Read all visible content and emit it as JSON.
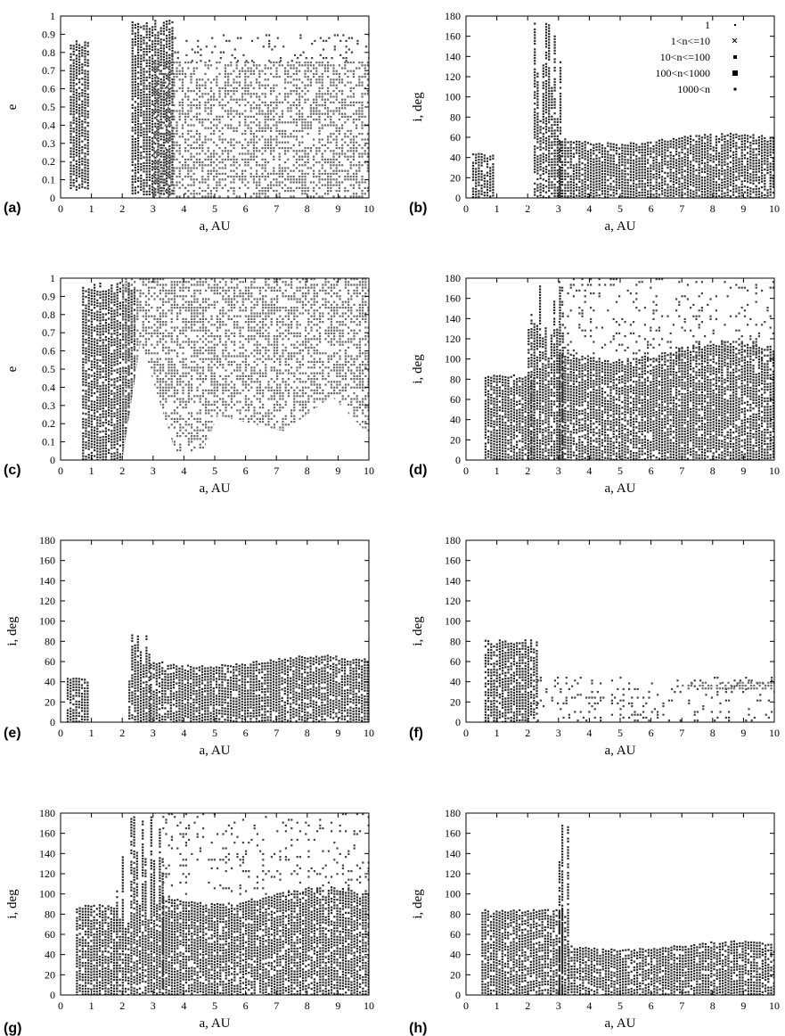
{
  "chart_data": [
    {
      "panel": "(a)",
      "type": "scatter",
      "xlabel": "a, AU",
      "ylabel": "e",
      "xlim": [
        0,
        10
      ],
      "ylim": [
        0,
        1
      ],
      "xticks": [
        "0",
        "1",
        "2",
        "3",
        "4",
        "5",
        "6",
        "7",
        "8",
        "9",
        "10"
      ],
      "yticks": [
        "0",
        "0.1",
        "0.2",
        "0.3",
        "0.4",
        "0.5",
        "0.6",
        "0.7",
        "0.8",
        "0.9",
        "1"
      ],
      "regions": [
        {
          "x": [
            0.3,
            0.9
          ],
          "y": [
            0.05,
            0.87
          ],
          "density": "high",
          "shape": "band"
        },
        {
          "x": [
            2.3,
            3.6
          ],
          "y": [
            0.02,
            0.98
          ],
          "density": "high",
          "shape": "band"
        },
        {
          "x": [
            3.0,
            10.0
          ],
          "y": [
            0.0,
            0.75
          ],
          "density": "medium",
          "shape": "rect"
        },
        {
          "x": [
            3.5,
            10.0
          ],
          "y": [
            0.75,
            0.9
          ],
          "density": "low",
          "shape": "rect"
        }
      ]
    },
    {
      "panel": "(b)",
      "type": "scatter",
      "xlabel": "a, AU",
      "ylabel": "i, deg",
      "xlim": [
        0,
        10
      ],
      "ylim": [
        0,
        180
      ],
      "xticks": [
        "0",
        "1",
        "2",
        "3",
        "4",
        "5",
        "6",
        "7",
        "8",
        "9",
        "10"
      ],
      "yticks": [
        "0",
        "20",
        "40",
        "60",
        "80",
        "100",
        "120",
        "140",
        "160",
        "180"
      ],
      "legend": {
        "position": "top-right",
        "entries": [
          {
            "label": "1",
            "marker": "dot"
          },
          {
            "label": "1<n<=10",
            "marker": "x"
          },
          {
            "label": "10<n<=100",
            "marker": "small-square"
          },
          {
            "label": "100<n<1000",
            "marker": "square"
          },
          {
            "label": "1000<n",
            "marker": "tiny-square"
          }
        ]
      },
      "regions": [
        {
          "x": [
            0.2,
            0.9
          ],
          "y": [
            0,
            45
          ],
          "density": "high",
          "shape": "band"
        },
        {
          "x": [
            2.2,
            3.1
          ],
          "y": [
            0,
            175
          ],
          "density": "high",
          "shape": "spikes"
        },
        {
          "x": [
            3.0,
            10.0
          ],
          "y": [
            0,
            60
          ],
          "density": "high",
          "shape": "plateau"
        }
      ]
    },
    {
      "panel": "(c)",
      "type": "scatter",
      "xlabel": "a, AU",
      "ylabel": "e",
      "xlim": [
        0,
        10
      ],
      "ylim": [
        0,
        1
      ],
      "xticks": [
        "0",
        "1",
        "2",
        "3",
        "4",
        "5",
        "6",
        "7",
        "8",
        "9",
        "10"
      ],
      "yticks": [
        "0",
        "0.1",
        "0.2",
        "0.3",
        "0.4",
        "0.5",
        "0.6",
        "0.7",
        "0.8",
        "0.9",
        "1"
      ],
      "regions": [
        {
          "x": [
            0.7,
            2.4
          ],
          "y": [
            0.0,
            0.98
          ],
          "density": "high",
          "shape": "band"
        },
        {
          "x": [
            2.0,
            10.0
          ],
          "y": [
            0.05,
            1.0
          ],
          "density": "medium",
          "shape": "rect"
        }
      ],
      "gaps": [
        {
          "x": [
            2.0,
            3.8
          ],
          "y": [
            0.0,
            0.65
          ],
          "shape": "triangle"
        },
        {
          "x": [
            4.5,
            10.0
          ],
          "y": [
            0.0,
            0.35
          ],
          "shape": "wedge"
        }
      ]
    },
    {
      "panel": "(d)",
      "type": "scatter",
      "xlabel": "a, AU",
      "ylabel": "i, deg",
      "xlim": [
        0,
        10
      ],
      "ylim": [
        0,
        180
      ],
      "xticks": [
        "0",
        "1",
        "2",
        "3",
        "4",
        "5",
        "6",
        "7",
        "8",
        "9",
        "10"
      ],
      "yticks": [
        "0",
        "20",
        "40",
        "60",
        "80",
        "100",
        "120",
        "140",
        "160",
        "180"
      ],
      "regions": [
        {
          "x": [
            0.6,
            2.2
          ],
          "y": [
            0,
            85
          ],
          "density": "high",
          "shape": "band"
        },
        {
          "x": [
            2.0,
            3.2
          ],
          "y": [
            0,
            178
          ],
          "density": "high",
          "shape": "spikes"
        },
        {
          "x": [
            3.0,
            10.0
          ],
          "y": [
            0,
            110
          ],
          "density": "high",
          "shape": "plateau"
        },
        {
          "x": [
            3.0,
            10.0
          ],
          "y": [
            100,
            180
          ],
          "density": "low",
          "shape": "rect"
        }
      ]
    },
    {
      "panel": "(e)",
      "type": "scatter",
      "xlabel": "a, AU",
      "ylabel": "i, deg",
      "xlim": [
        0,
        10
      ],
      "ylim": [
        0,
        180
      ],
      "xticks": [
        "0",
        "1",
        "2",
        "3",
        "4",
        "5",
        "6",
        "7",
        "8",
        "9",
        "10"
      ],
      "yticks": [
        "0",
        "20",
        "40",
        "60",
        "80",
        "100",
        "120",
        "140",
        "160",
        "180"
      ],
      "regions": [
        {
          "x": [
            0.2,
            0.9
          ],
          "y": [
            0,
            45
          ],
          "density": "high",
          "shape": "band"
        },
        {
          "x": [
            2.2,
            2.9
          ],
          "y": [
            0,
            88
          ],
          "density": "high",
          "shape": "spikes"
        },
        {
          "x": [
            2.9,
            10.0
          ],
          "y": [
            0,
            62
          ],
          "density": "high",
          "shape": "plateau"
        }
      ]
    },
    {
      "panel": "(f)",
      "type": "scatter",
      "xlabel": "a, AU",
      "ylabel": "i, deg",
      "xlim": [
        0,
        10
      ],
      "ylim": [
        0,
        180
      ],
      "xticks": [
        "0",
        "1",
        "2",
        "3",
        "4",
        "5",
        "6",
        "7",
        "8",
        "9",
        "10"
      ],
      "yticks": [
        "0",
        "20",
        "40",
        "60",
        "80",
        "100",
        "120",
        "140",
        "160",
        "180"
      ],
      "regions": [
        {
          "x": [
            0.6,
            2.3
          ],
          "y": [
            0,
            82
          ],
          "density": "high",
          "shape": "band"
        },
        {
          "x": [
            2.3,
            10.0
          ],
          "y": [
            0,
            45
          ],
          "density": "low",
          "shape": "sparse"
        },
        {
          "x": [
            7.0,
            10.0
          ],
          "y": [
            33,
            40
          ],
          "density": "medium",
          "shape": "strip"
        }
      ]
    },
    {
      "panel": "(g)",
      "type": "scatter",
      "xlabel": "a, AU",
      "ylabel": "i, deg",
      "xlim": [
        0,
        10
      ],
      "ylim": [
        0,
        180
      ],
      "xticks": [
        "0",
        "1",
        "2",
        "3",
        "4",
        "5",
        "6",
        "7",
        "8",
        "9",
        "10"
      ],
      "yticks": [
        "0",
        "20",
        "40",
        "60",
        "80",
        "100",
        "120",
        "140",
        "160",
        "180"
      ],
      "regions": [
        {
          "x": [
            0.5,
            1.8
          ],
          "y": [
            0,
            90
          ],
          "density": "high",
          "shape": "band"
        },
        {
          "x": [
            1.8,
            3.3
          ],
          "y": [
            0,
            178
          ],
          "density": "high",
          "shape": "spikes"
        },
        {
          "x": [
            3.3,
            10.0
          ],
          "y": [
            0,
            100
          ],
          "density": "high",
          "shape": "plateau"
        },
        {
          "x": [
            3.3,
            10.0
          ],
          "y": [
            100,
            180
          ],
          "density": "low",
          "shape": "rect"
        }
      ]
    },
    {
      "panel": "(h)",
      "type": "scatter",
      "xlabel": "a, AU",
      "ylabel": "i, deg",
      "xlim": [
        0,
        10
      ],
      "ylim": [
        0,
        180
      ],
      "xticks": [
        "0",
        "1",
        "2",
        "3",
        "4",
        "5",
        "6",
        "7",
        "8",
        "9",
        "10"
      ],
      "yticks": [
        "0",
        "20",
        "40",
        "60",
        "80",
        "100",
        "120",
        "140",
        "160",
        "180"
      ],
      "regions": [
        {
          "x": [
            0.5,
            3.1
          ],
          "y": [
            0,
            85
          ],
          "density": "high",
          "shape": "band"
        },
        {
          "x": [
            3.0,
            3.3
          ],
          "y": [
            0,
            175
          ],
          "density": "high",
          "shape": "spikes"
        },
        {
          "x": [
            3.3,
            10.0
          ],
          "y": [
            0,
            50
          ],
          "density": "high",
          "shape": "plateau"
        }
      ]
    }
  ]
}
